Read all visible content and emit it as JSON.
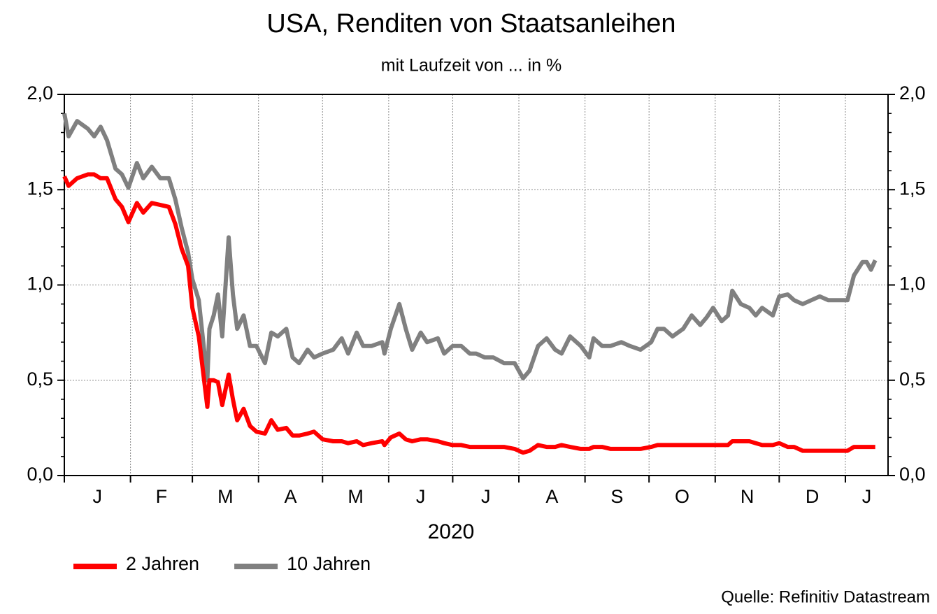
{
  "chart_data": {
    "type": "line",
    "title": "USA, Renditen von Staatsanleihen",
    "subtitle": "mit Laufzeit von ... in %",
    "xlabel": "2020",
    "source": "Quelle: Refinitiv Datastream",
    "grid": true,
    "legend": "bottom-left",
    "xlim": [
      0,
      386
    ],
    "xticks": [
      {
        "value": 0,
        "label": "J"
      },
      {
        "value": 31,
        "label": "F"
      },
      {
        "value": 60,
        "label": "M"
      },
      {
        "value": 91,
        "label": "A"
      },
      {
        "value": 121,
        "label": "M"
      },
      {
        "value": 152,
        "label": "J"
      },
      {
        "value": 182,
        "label": "J"
      },
      {
        "value": 213,
        "label": "A"
      },
      {
        "value": 244,
        "label": "S"
      },
      {
        "value": 274,
        "label": "O"
      },
      {
        "value": 305,
        "label": "N"
      },
      {
        "value": 335,
        "label": "D"
      },
      {
        "value": 366,
        "label": "J"
      }
    ],
    "ylim": [
      0,
      2
    ],
    "yticks": [
      {
        "value": 0,
        "label": "0,0"
      },
      {
        "value": 0.5,
        "label": "0,5"
      },
      {
        "value": 1,
        "label": "1,0"
      },
      {
        "value": 1.5,
        "label": "1,5"
      },
      {
        "value": 2,
        "label": "2,0"
      }
    ],
    "y2lim": [
      0,
      2
    ],
    "y2ticks": [
      {
        "value": 0,
        "label": "0,0"
      },
      {
        "value": 0.5,
        "label": "0,5"
      },
      {
        "value": 1,
        "label": "1,0"
      },
      {
        "value": 1.5,
        "label": "1,5"
      },
      {
        "value": 2,
        "label": "2,0"
      }
    ],
    "x": [
      0,
      2,
      6,
      11,
      14,
      17,
      20,
      24,
      27,
      30,
      34,
      37,
      41,
      45,
      49,
      52,
      55,
      58,
      60,
      63,
      67,
      68,
      70,
      72,
      74,
      77,
      79,
      81,
      84,
      87,
      90,
      94,
      97,
      100,
      104,
      107,
      110,
      114,
      117,
      121,
      126,
      130,
      133,
      137,
      140,
      144,
      149,
      150,
      153,
      157,
      160,
      163,
      167,
      170,
      175,
      178,
      182,
      186,
      190,
      193,
      197,
      201,
      206,
      211,
      215,
      218,
      222,
      226,
      230,
      233,
      237,
      242,
      246,
      248,
      252,
      256,
      261,
      265,
      270,
      275,
      278,
      281,
      285,
      290,
      294,
      298,
      301,
      304,
      308,
      311,
      313,
      317,
      321,
      324,
      327,
      332,
      335,
      339,
      342,
      346,
      350,
      354,
      358,
      363,
      367,
      370,
      374,
      376,
      378,
      380
    ],
    "series": [
      {
        "name": "2 Jahren",
        "color": "#ff0000",
        "values": [
          1.57,
          1.52,
          1.56,
          1.58,
          1.58,
          1.56,
          1.56,
          1.45,
          1.41,
          1.33,
          1.43,
          1.38,
          1.43,
          1.42,
          1.41,
          1.32,
          1.19,
          1.1,
          0.88,
          0.73,
          0.36,
          0.5,
          0.5,
          0.49,
          0.37,
          0.53,
          0.4,
          0.29,
          0.35,
          0.26,
          0.23,
          0.22,
          0.29,
          0.24,
          0.25,
          0.21,
          0.21,
          0.22,
          0.23,
          0.19,
          0.18,
          0.18,
          0.17,
          0.18,
          0.16,
          0.17,
          0.18,
          0.16,
          0.2,
          0.22,
          0.19,
          0.18,
          0.19,
          0.19,
          0.18,
          0.17,
          0.16,
          0.16,
          0.15,
          0.15,
          0.15,
          0.15,
          0.15,
          0.14,
          0.12,
          0.13,
          0.16,
          0.15,
          0.15,
          0.16,
          0.15,
          0.14,
          0.14,
          0.15,
          0.15,
          0.14,
          0.14,
          0.14,
          0.14,
          0.15,
          0.16,
          0.16,
          0.16,
          0.16,
          0.16,
          0.16,
          0.16,
          0.16,
          0.16,
          0.16,
          0.18,
          0.18,
          0.18,
          0.17,
          0.16,
          0.16,
          0.17,
          0.15,
          0.15,
          0.13,
          0.13,
          0.13,
          0.13,
          0.13,
          0.13,
          0.15,
          0.15,
          0.15,
          0.15,
          0.15
        ]
      },
      {
        "name": "10 Jahren",
        "color": "#808080",
        "values": [
          1.9,
          1.78,
          1.86,
          1.82,
          1.78,
          1.83,
          1.76,
          1.61,
          1.58,
          1.51,
          1.64,
          1.56,
          1.62,
          1.56,
          1.56,
          1.45,
          1.3,
          1.17,
          1.03,
          0.92,
          0.5,
          0.77,
          0.84,
          0.95,
          0.73,
          1.25,
          0.95,
          0.77,
          0.84,
          0.68,
          0.68,
          0.59,
          0.75,
          0.73,
          0.77,
          0.62,
          0.59,
          0.66,
          0.62,
          0.64,
          0.66,
          0.72,
          0.64,
          0.75,
          0.68,
          0.68,
          0.7,
          0.64,
          0.77,
          0.9,
          0.77,
          0.66,
          0.75,
          0.7,
          0.72,
          0.64,
          0.68,
          0.68,
          0.64,
          0.64,
          0.62,
          0.62,
          0.59,
          0.59,
          0.51,
          0.55,
          0.68,
          0.72,
          0.66,
          0.64,
          0.73,
          0.68,
          0.62,
          0.72,
          0.68,
          0.68,
          0.7,
          0.68,
          0.66,
          0.7,
          0.77,
          0.77,
          0.73,
          0.77,
          0.84,
          0.79,
          0.83,
          0.88,
          0.81,
          0.84,
          0.97,
          0.9,
          0.88,
          0.84,
          0.88,
          0.84,
          0.94,
          0.95,
          0.92,
          0.9,
          0.92,
          0.94,
          0.92,
          0.92,
          0.92,
          1.05,
          1.12,
          1.12,
          1.08,
          1.13
        ]
      }
    ]
  }
}
